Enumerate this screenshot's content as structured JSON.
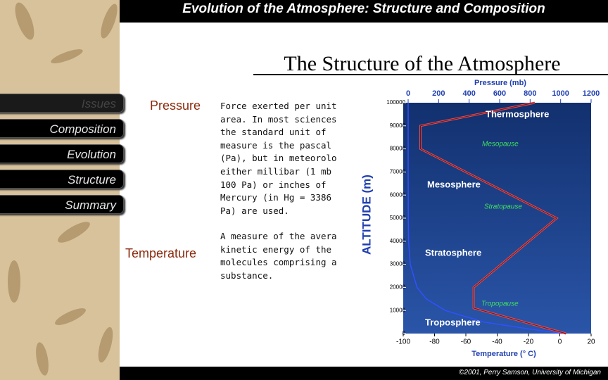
{
  "header": {
    "title": "Evolution of the Atmosphere: Structure and Composition"
  },
  "slide": {
    "title": "The Structure of the Atmosphere"
  },
  "nav": {
    "items": [
      "Issues",
      "Composition",
      "Evolution",
      "Structure",
      "Summary"
    ]
  },
  "definitions": [
    {
      "term": "Pressure",
      "lines": [
        "Force exerted per unit",
        "area.  In most sciences",
        "the standard unit of",
        "measure is the pascal",
        "(Pa), but in meteorology",
        "either millibar (1 mb =",
        "100 Pa) or inches of",
        "Mercury (in Hg = 3386",
        "Pa) are used."
      ]
    },
    {
      "term": "Temperature",
      "lines": [
        "A measure of the average",
        "kinetic energy of the",
        "molecules comprising a",
        "substance."
      ]
    }
  ],
  "figure": {
    "pressure_label": "Pressure (mb)",
    "altitude_label": "ALTITUDE (m)",
    "temperature_label": "Temperature (° C)",
    "pressure_range": [
      0,
      1200
    ],
    "pressure_ticks": [
      0,
      200,
      400,
      600,
      800,
      1000,
      1200
    ],
    "altitude_range": [
      0,
      100000
    ],
    "altitude_ticks": [
      0,
      10000,
      20000,
      30000,
      40000,
      50000,
      60000,
      70000,
      80000,
      90000,
      100000
    ],
    "temperature_range": [
      -100,
      20
    ],
    "temperature_ticks": [
      -100,
      -80,
      -60,
      -40,
      -20,
      0,
      20
    ],
    "layers": [
      "Thermosphere",
      "Mesopause",
      "Mesosphere",
      "Stratopause",
      "Stratosphere",
      "Tropopause",
      "Troposphere"
    ],
    "temperature_profile": {
      "altitude": [
        0,
        11000,
        20000,
        50000,
        80000,
        90000,
        100000
      ],
      "temperature": [
        4,
        -55,
        -55,
        -2,
        -89,
        -89,
        -16
      ]
    },
    "pressure_profile": {
      "altitude": [
        0,
        2000,
        5000,
        10000,
        15000,
        20000,
        30000,
        40000,
        50000,
        70000,
        100000
      ],
      "pressure": [
        1013,
        789,
        497,
        243,
        119,
        58,
        14,
        3,
        1,
        0,
        0
      ]
    }
  },
  "footer": {
    "credit": "©2001, Perry Samson, University of Michigan"
  }
}
